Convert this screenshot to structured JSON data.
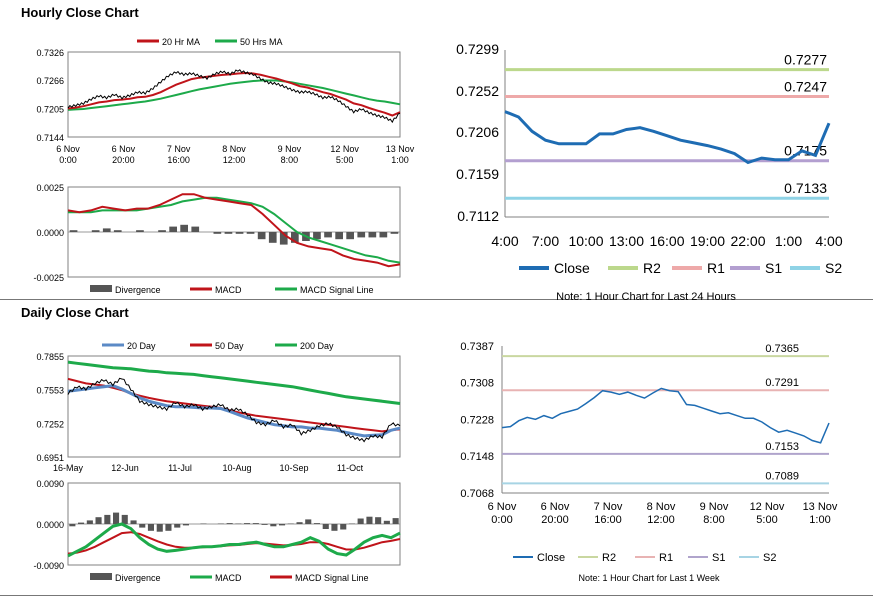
{
  "sections": {
    "hourly_title": "Hourly Close Chart",
    "daily_title": "Daily Close Chart"
  },
  "chart_data": [
    {
      "id": "hourly_price",
      "type": "line",
      "x_ticks": [
        "6 Nov\n0:00",
        "6 Nov\n20:00",
        "7 Nov\n16:00",
        "8 Nov\n12:00",
        "9 Nov\n8:00",
        "12 Nov\n5:00",
        "13 Nov\n1:00"
      ],
      "y_ticks": [
        "0.7326",
        "0.7266",
        "0.7205",
        "0.7144"
      ],
      "ylim": [
        0.7144,
        0.7326
      ],
      "legend": [
        "20 Hr MA",
        "50 Hrs MA"
      ],
      "colors": {
        "price": "#000000",
        "ma20": "#c0141a",
        "ma50": "#1daa4a"
      },
      "series": [
        {
          "name": "Close",
          "values": [
            0.7208,
            0.7212,
            0.7216,
            0.7225,
            0.7232,
            0.7228,
            0.7235,
            0.7228,
            0.7233,
            0.724,
            0.7238,
            0.7248,
            0.7262,
            0.7275,
            0.7283,
            0.7278,
            0.728,
            0.7275,
            0.727,
            0.7279,
            0.7284,
            0.7279,
            0.7287,
            0.7282,
            0.7278,
            0.7268,
            0.726,
            0.7258,
            0.7252,
            0.7245,
            0.724,
            0.7241,
            0.7236,
            0.7228,
            0.723,
            0.7222,
            0.721,
            0.7198,
            0.7204,
            0.7196,
            0.719,
            0.7186,
            0.7178,
            0.7195
          ]
        },
        {
          "name": "20 Hr MA",
          "values": [
            0.7205,
            0.7207,
            0.721,
            0.7214,
            0.7218,
            0.722,
            0.7223,
            0.7224,
            0.7226,
            0.7229,
            0.723,
            0.7234,
            0.724,
            0.7248,
            0.7256,
            0.7262,
            0.7268,
            0.7271,
            0.7273,
            0.7275,
            0.7277,
            0.7278,
            0.728,
            0.7281,
            0.728,
            0.7277,
            0.7273,
            0.7269,
            0.7264,
            0.7259,
            0.7253,
            0.725,
            0.7245,
            0.724,
            0.7236,
            0.723,
            0.7224,
            0.7216,
            0.7212,
            0.7206,
            0.7201,
            0.7196,
            0.719,
            0.7197
          ]
        },
        {
          "name": "50 Hrs MA",
          "values": [
            0.7202,
            0.7203,
            0.7204,
            0.7206,
            0.7208,
            0.721,
            0.7212,
            0.7214,
            0.7216,
            0.7218,
            0.722,
            0.7223,
            0.7226,
            0.723,
            0.7234,
            0.7238,
            0.7242,
            0.7246,
            0.7249,
            0.7252,
            0.7255,
            0.7258,
            0.726,
            0.7262,
            0.7264,
            0.7265,
            0.7265,
            0.7265,
            0.7263,
            0.7261,
            0.7258,
            0.7255,
            0.7252,
            0.7249,
            0.7245,
            0.7241,
            0.7237,
            0.7233,
            0.7229,
            0.7225,
            0.7222,
            0.722,
            0.7217,
            0.7214
          ]
        }
      ]
    },
    {
      "id": "hourly_macd",
      "type": "line",
      "y_ticks": [
        "0.0025",
        "0.0000",
        "-0.0025"
      ],
      "ylim": [
        -0.0025,
        0.0025
      ],
      "legend": [
        "Divergence",
        "MACD",
        "MACD Signal Line"
      ],
      "colors": {
        "divergence": "#555555",
        "macd": "#c0141a",
        "signal": "#1daa4a"
      },
      "series": [
        {
          "name": "MACD",
          "values": [
            0.0012,
            0.0011,
            0.0012,
            0.0014,
            0.0013,
            0.0012,
            0.0013,
            0.0013,
            0.0015,
            0.0018,
            0.0021,
            0.0021,
            0.0019,
            0.0018,
            0.0017,
            0.0016,
            0.0015,
            0.001,
            0.0004,
            -0.0002,
            -0.0006,
            -0.0008,
            -0.0009,
            -0.001,
            -0.0013,
            -0.0015,
            -0.0016,
            -0.0017,
            -0.0019,
            -0.0018
          ]
        },
        {
          "name": "MACD Signal Line",
          "values": [
            0.0011,
            0.0011,
            0.0011,
            0.0012,
            0.0012,
            0.0012,
            0.0012,
            0.0013,
            0.0014,
            0.0015,
            0.0017,
            0.0018,
            0.0019,
            0.0019,
            0.0018,
            0.0017,
            0.0016,
            0.0014,
            0.001,
            0.0005,
            0.0,
            -0.0003,
            -0.0005,
            -0.0007,
            -0.0009,
            -0.0011,
            -0.0013,
            -0.0014,
            -0.0016,
            -0.0017
          ]
        },
        {
          "name": "Divergence",
          "values": [
            0.0001,
            0.0,
            0.0001,
            0.0002,
            0.0001,
            0.0,
            0.0001,
            0.0,
            0.0001,
            0.0003,
            0.0004,
            0.0003,
            0.0,
            -0.0001,
            -0.0001,
            -0.0001,
            -0.0001,
            -0.0004,
            -0.0006,
            -0.0007,
            -0.0006,
            -0.0005,
            -0.0004,
            -0.0003,
            -0.0004,
            -0.0004,
            -0.0003,
            -0.0003,
            -0.0003,
            -0.0001
          ]
        }
      ]
    },
    {
      "id": "hourly_24h",
      "type": "line",
      "x_ticks": [
        "4:00",
        "7:00",
        "10:00",
        "13:00",
        "16:00",
        "19:00",
        "22:00",
        "1:00",
        "4:00"
      ],
      "y_ticks": [
        "0.7299",
        "0.7252",
        "0.7206",
        "0.7159",
        "0.7112"
      ],
      "ylim": [
        0.7112,
        0.7299
      ],
      "levels": [
        {
          "name": "R2",
          "value": 0.7277,
          "label": "0.7277",
          "color": "#bcd88c"
        },
        {
          "name": "R1",
          "value": 0.7247,
          "label": "0.7247",
          "color": "#eea9a9"
        },
        {
          "name": "S1",
          "value": 0.7175,
          "label": "0.7175",
          "color": "#b39fd0"
        },
        {
          "name": "S2",
          "value": 0.7133,
          "label": "0.7133",
          "color": "#8fd3e6"
        }
      ],
      "legend": [
        "Close",
        "R2",
        "R1",
        "S1",
        "S2"
      ],
      "colors": {
        "close": "#1e6cb3"
      },
      "series": [
        {
          "name": "Close",
          "values": [
            0.723,
            0.7224,
            0.7208,
            0.7198,
            0.7194,
            0.7194,
            0.7194,
            0.7205,
            0.7205,
            0.721,
            0.7212,
            0.7208,
            0.7203,
            0.7198,
            0.7195,
            0.7192,
            0.7188,
            0.7183,
            0.7173,
            0.7178,
            0.7176,
            0.7176,
            0.7186,
            0.7181,
            0.7217
          ]
        }
      ],
      "note": "Note: 1 Hour Chart for Last 24 Hours"
    },
    {
      "id": "daily_price",
      "type": "line",
      "x_ticks": [
        "16-May",
        "12-Jun",
        "11-Jul",
        "10-Aug",
        "10-Sep",
        "11-Oct"
      ],
      "y_ticks": [
        "0.7855",
        "0.7553",
        "0.7252",
        "0.6951"
      ],
      "ylim": [
        0.6951,
        0.7855
      ],
      "legend": [
        "20 Day",
        "50 Day",
        "200 Day"
      ],
      "colors": {
        "price": "#000000",
        "ma20": "#5b8ac6",
        "ma50": "#c0141a",
        "ma200": "#1daa4a"
      },
      "series": [
        {
          "name": "Close",
          "values": [
            0.752,
            0.758,
            0.756,
            0.761,
            0.764,
            0.76,
            0.766,
            0.756,
            0.745,
            0.742,
            0.74,
            0.738,
            0.744,
            0.74,
            0.742,
            0.738,
            0.74,
            0.742,
            0.737,
            0.738,
            0.733,
            0.726,
            0.724,
            0.728,
            0.722,
            0.724,
            0.716,
            0.719,
            0.723,
            0.725,
            0.722,
            0.715,
            0.712,
            0.71,
            0.714,
            0.713,
            0.725,
            0.723
          ]
        },
        {
          "name": "20 Day",
          "values": [
            0.754,
            0.755,
            0.756,
            0.757,
            0.758,
            0.759,
            0.756,
            0.752,
            0.748,
            0.745,
            0.743,
            0.741,
            0.74,
            0.74,
            0.7395,
            0.739,
            0.739,
            0.7385,
            0.736,
            0.733,
            0.73,
            0.728,
            0.726,
            0.724,
            0.723,
            0.722,
            0.722,
            0.721,
            0.721,
            0.72,
            0.719,
            0.717,
            0.7155,
            0.714,
            0.7145,
            0.715,
            0.719,
            0.721
          ]
        },
        {
          "name": "50 Day",
          "values": [
            0.765,
            0.763,
            0.761,
            0.76,
            0.759,
            0.757,
            0.755,
            0.752,
            0.75,
            0.748,
            0.7465,
            0.745,
            0.744,
            0.743,
            0.742,
            0.741,
            0.74,
            0.739,
            0.737,
            0.735,
            0.7335,
            0.732,
            0.731,
            0.73,
            0.729,
            0.728,
            0.727,
            0.726,
            0.725,
            0.724,
            0.723,
            0.722,
            0.721,
            0.72,
            0.719,
            0.718,
            0.719,
            0.72
          ]
        },
        {
          "name": "200 Day",
          "values": [
            0.78,
            0.779,
            0.778,
            0.777,
            0.776,
            0.775,
            0.7745,
            0.774,
            0.773,
            0.772,
            0.7715,
            0.7705,
            0.77,
            0.7695,
            0.769,
            0.768,
            0.767,
            0.766,
            0.765,
            0.764,
            0.763,
            0.762,
            0.761,
            0.76,
            0.759,
            0.758,
            0.7565,
            0.755,
            0.7535,
            0.752,
            0.7505,
            0.749,
            0.748,
            0.747,
            0.746,
            0.745,
            0.744,
            0.743
          ]
        }
      ]
    },
    {
      "id": "daily_macd",
      "type": "line",
      "y_ticks": [
        "0.0090",
        "0.0000",
        "-0.0090"
      ],
      "ylim": [
        -0.009,
        0.009
      ],
      "legend": [
        "Divergence",
        "MACD",
        "MACD Signal Line"
      ],
      "colors": {
        "divergence": "#555555",
        "macd": "#1daa4a",
        "signal": "#c0141a"
      },
      "series": [
        {
          "name": "MACD",
          "values": [
            -0.007,
            -0.006,
            -0.005,
            -0.0035,
            -0.002,
            -0.0005,
            0.0,
            -0.001,
            -0.003,
            -0.0045,
            -0.0055,
            -0.006,
            -0.0058,
            -0.0055,
            -0.0052,
            -0.005,
            -0.005,
            -0.0048,
            -0.0045,
            -0.0045,
            -0.0042,
            -0.004,
            -0.0045,
            -0.005,
            -0.005,
            -0.0045,
            -0.004,
            -0.003,
            -0.0038,
            -0.0055,
            -0.0065,
            -0.0068,
            -0.0055,
            -0.004,
            -0.003,
            -0.0025,
            -0.003,
            -0.002
          ]
        },
        {
          "name": "MACD Signal Line",
          "values": [
            -0.0065,
            -0.0063,
            -0.0058,
            -0.005,
            -0.004,
            -0.003,
            -0.002,
            -0.0018,
            -0.0022,
            -0.003,
            -0.0038,
            -0.0045,
            -0.005,
            -0.0052,
            -0.0052,
            -0.0051,
            -0.005,
            -0.0049,
            -0.0047,
            -0.0046,
            -0.0044,
            -0.0042,
            -0.0043,
            -0.0045,
            -0.0047,
            -0.0046,
            -0.0044,
            -0.004,
            -0.004,
            -0.0044,
            -0.005,
            -0.0056,
            -0.0056,
            -0.0052,
            -0.0046,
            -0.004,
            -0.0037,
            -0.0033
          ]
        },
        {
          "name": "Divergence",
          "values": [
            -0.0005,
            0.0003,
            0.0008,
            0.0015,
            0.002,
            0.0025,
            0.002,
            0.0008,
            -0.0008,
            -0.0015,
            -0.0017,
            -0.0015,
            -0.0008,
            -0.0003,
            0.0,
            0.0001,
            0.0,
            0.0001,
            0.0002,
            0.0001,
            0.0002,
            0.0002,
            -0.0002,
            -0.0005,
            -0.0003,
            0.0001,
            0.0004,
            0.001,
            0.0002,
            -0.0011,
            -0.0015,
            -0.0012,
            0.0001,
            0.0012,
            0.0016,
            0.0015,
            0.0007,
            0.0013
          ]
        }
      ]
    },
    {
      "id": "week_hourly",
      "type": "line",
      "x_ticks": [
        "6 Nov\n0:00",
        "6 Nov\n20:00",
        "7 Nov\n16:00",
        "8 Nov\n12:00",
        "9 Nov\n8:00",
        "12 Nov\n5:00",
        "13 Nov\n1:00"
      ],
      "y_ticks": [
        "0.7387",
        "0.7308",
        "0.7228",
        "0.7148",
        "0.7068"
      ],
      "ylim": [
        0.7068,
        0.7387
      ],
      "levels": [
        {
          "name": "R2",
          "value": 0.7365,
          "label": "0.7365",
          "color": "#c9d7a0"
        },
        {
          "name": "R1",
          "value": 0.7291,
          "label": "0.7291",
          "color": "#e8b3b3"
        },
        {
          "name": "S1",
          "value": 0.7153,
          "label": "0.7153",
          "color": "#b0a4cc"
        },
        {
          "name": "S2",
          "value": 0.7089,
          "label": "0.7089",
          "color": "#a7d4e4"
        }
      ],
      "legend": [
        "Close",
        "R2",
        "R1",
        "S1",
        "S2"
      ],
      "colors": {
        "close": "#1e6cb3"
      },
      "series": [
        {
          "name": "Close",
          "values": [
            0.721,
            0.7212,
            0.7225,
            0.7232,
            0.7228,
            0.7236,
            0.723,
            0.724,
            0.7245,
            0.725,
            0.7262,
            0.7275,
            0.729,
            0.7287,
            0.7282,
            0.7287,
            0.728,
            0.7274,
            0.7285,
            0.7295,
            0.729,
            0.7288,
            0.726,
            0.7258,
            0.7252,
            0.7246,
            0.724,
            0.7242,
            0.7236,
            0.723,
            0.723,
            0.7222,
            0.721,
            0.72,
            0.7204,
            0.7198,
            0.7192,
            0.7182,
            0.7177,
            0.722
          ]
        }
      ],
      "note": "Note: 1 Hour Chart for Last 1 Week"
    }
  ]
}
